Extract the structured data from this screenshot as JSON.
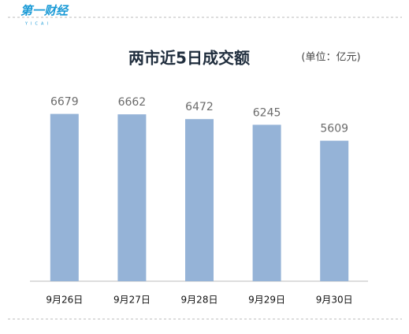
{
  "logo": {
    "name": "第一财经",
    "sub": "YICAI"
  },
  "chart_data": {
    "type": "bar",
    "title": "两市近5日成交额",
    "unit": "(单位：亿元)",
    "categories": [
      "9月26日",
      "9月27日",
      "9月28日",
      "9月29日",
      "9月30日"
    ],
    "values": [
      6679,
      6662,
      6472,
      6245,
      5609
    ],
    "color": "#95b3d7",
    "ylim": [
      0,
      7000
    ],
    "grid": false
  }
}
